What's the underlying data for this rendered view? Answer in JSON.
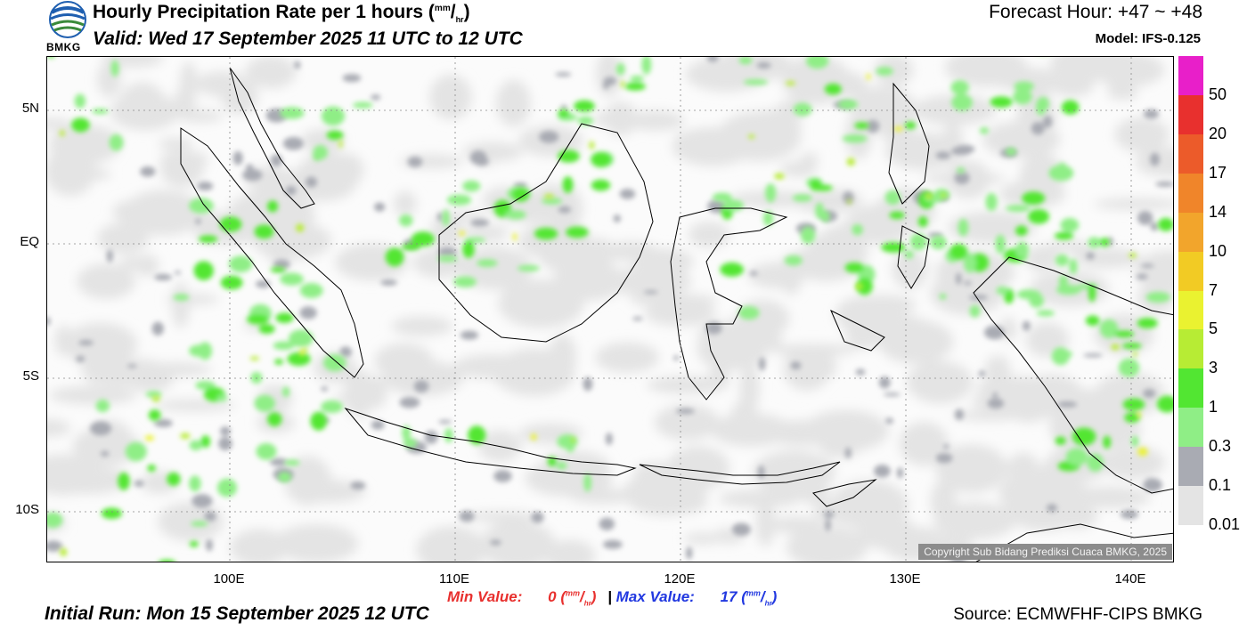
{
  "header": {
    "title": "Hourly Precipitation Rate per 1 hours",
    "title_unit_sup": "mm",
    "title_unit_sub": "hr",
    "valid": "Valid: Wed 17 September 2025 11 UTC to 12 UTC",
    "forecast_hour": "Forecast Hour: +47 ~ +48",
    "model": "Model: IFS-0.125"
  },
  "logo": {
    "text": "BMKG",
    "icon": "bmkg-logo-icon"
  },
  "map": {
    "lat_labels": [
      "5N",
      "EQ",
      "5S",
      "10S"
    ],
    "lon_labels": [
      "100E",
      "110E",
      "120E",
      "130E",
      "140E"
    ],
    "copyright": "Copyright Sub Bidang Prediksi Cuaca BMKG, 2025"
  },
  "legend": {
    "labels": [
      "50",
      "20",
      "17",
      "14",
      "10",
      "7",
      "5",
      "3",
      "1",
      "0.3",
      "0.1",
      "0.01"
    ],
    "colors": [
      "#e81fc9",
      "#e8302e",
      "#ec5b2a",
      "#f0852a",
      "#f2a52c",
      "#f2cb24",
      "#eaf230",
      "#b7ec34",
      "#52e632",
      "#8fee86",
      "#a9abb3",
      "#e4e4e4"
    ]
  },
  "stats": {
    "min_label": "Min Value:",
    "min_value": "0",
    "separator": "|",
    "max_label": "Max Value:",
    "max_value": "17",
    "unit_sup": "mm",
    "unit_sub": "hr"
  },
  "footer": {
    "initial_run": "Initial Run: Mon 15 September 2025 12 UTC",
    "source": "Source: ECMWFHF-CIPS BMKG"
  }
}
